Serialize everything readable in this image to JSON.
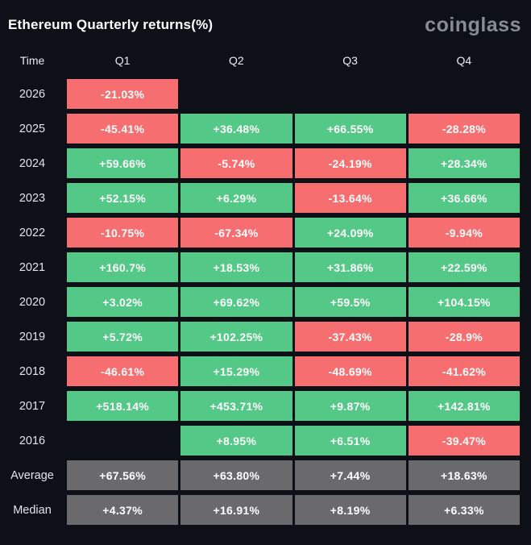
{
  "header": {
    "title": "Ethereum Quarterly returns(%)",
    "brand": "coinglass"
  },
  "colors": {
    "positive": "#54c886",
    "negative": "#f76e70",
    "summary": "#6a6a6c",
    "background": "#0d1016",
    "brand": "#878b93"
  },
  "chart_data": {
    "type": "heatmap",
    "title": "Ethereum Quarterly returns(%)",
    "columns": [
      "Time",
      "Q1",
      "Q2",
      "Q3",
      "Q4"
    ],
    "rows": [
      {
        "label": "2026",
        "kind": "year",
        "cells": [
          "-21.03%",
          null,
          null,
          null
        ]
      },
      {
        "label": "2025",
        "kind": "year",
        "cells": [
          "-45.41%",
          "+36.48%",
          "+66.55%",
          "-28.28%"
        ]
      },
      {
        "label": "2024",
        "kind": "year",
        "cells": [
          "+59.66%",
          "-5.74%",
          "-24.19%",
          "+28.34%"
        ]
      },
      {
        "label": "2023",
        "kind": "year",
        "cells": [
          "+52.15%",
          "+6.29%",
          "-13.64%",
          "+36.66%"
        ]
      },
      {
        "label": "2022",
        "kind": "year",
        "cells": [
          "-10.75%",
          "-67.34%",
          "+24.09%",
          "-9.94%"
        ]
      },
      {
        "label": "2021",
        "kind": "year",
        "cells": [
          "+160.7%",
          "+18.53%",
          "+31.86%",
          "+22.59%"
        ]
      },
      {
        "label": "2020",
        "kind": "year",
        "cells": [
          "+3.02%",
          "+69.62%",
          "+59.5%",
          "+104.15%"
        ]
      },
      {
        "label": "2019",
        "kind": "year",
        "cells": [
          "+5.72%",
          "+102.25%",
          "-37.43%",
          "-28.9%"
        ]
      },
      {
        "label": "2018",
        "kind": "year",
        "cells": [
          "-46.61%",
          "+15.29%",
          "-48.69%",
          "-41.62%"
        ]
      },
      {
        "label": "2017",
        "kind": "year",
        "cells": [
          "+518.14%",
          "+453.71%",
          "+9.87%",
          "+142.81%"
        ]
      },
      {
        "label": "2016",
        "kind": "year",
        "cells": [
          null,
          "+8.95%",
          "+6.51%",
          "-39.47%"
        ]
      },
      {
        "label": "Average",
        "kind": "summary",
        "cells": [
          "+67.56%",
          "+63.80%",
          "+7.44%",
          "+18.63%"
        ]
      },
      {
        "label": "Median",
        "kind": "summary",
        "cells": [
          "+4.37%",
          "+16.91%",
          "+8.19%",
          "+6.33%"
        ]
      }
    ]
  }
}
